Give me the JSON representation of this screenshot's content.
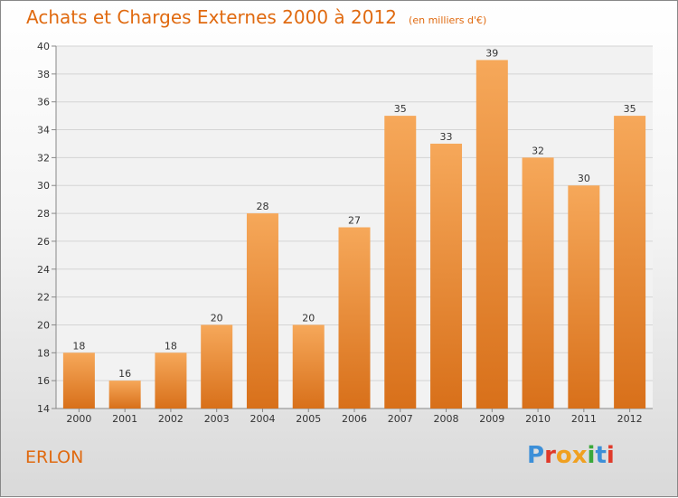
{
  "header": {
    "title": "Achats et Charges Externes 2000 à 2012",
    "subtitle": "(en milliers d'€)"
  },
  "footer": {
    "place": "ERLON",
    "logo_text": "Proxiti",
    "logo_colors": [
      "#3c8fd8",
      "#e03a2a",
      "#f0a020",
      "#f0a020",
      "#3aa83a",
      "#3c8fd8",
      "#e03a2a"
    ]
  },
  "colors": {
    "bar_top": "#f6a85a",
    "bar_bottom": "#d8701a",
    "text_accent": "#e06a10"
  },
  "chart_data": {
    "type": "bar",
    "categories": [
      "2000",
      "2001",
      "2002",
      "2003",
      "2004",
      "2005",
      "2006",
      "2007",
      "2008",
      "2009",
      "2010",
      "2011",
      "2012"
    ],
    "values": [
      18,
      16,
      18,
      20,
      28,
      20,
      27,
      35,
      33,
      39,
      32,
      30,
      35
    ],
    "ylim": [
      14,
      40
    ],
    "yticks": [
      14,
      16,
      18,
      20,
      22,
      24,
      26,
      28,
      30,
      32,
      34,
      36,
      38,
      40
    ],
    "grid": true,
    "data_labels": true
  }
}
